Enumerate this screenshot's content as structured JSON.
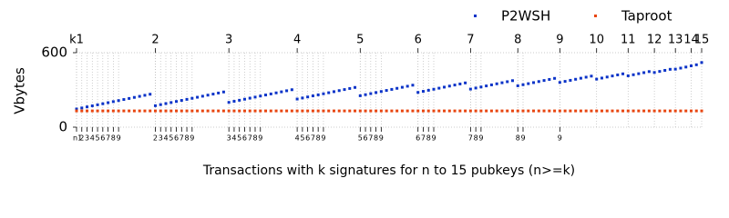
{
  "chart_data": {
    "type": "scatter",
    "xlabel": "Transactions with k signatures for n to 15 pubkeys (n>=k)",
    "ylabel": "Vbytes",
    "xlim": [
      0,
      119
    ],
    "ylim": [
      0,
      600
    ],
    "yticks": [
      0,
      600
    ],
    "x2ticks": [
      {
        "value": 0,
        "label": "k1"
      },
      {
        "value": 15,
        "label": "2"
      },
      {
        "value": 29,
        "label": "3"
      },
      {
        "value": 42,
        "label": "4"
      },
      {
        "value": 54,
        "label": "5"
      },
      {
        "value": 65,
        "label": "6"
      },
      {
        "value": 75,
        "label": "7"
      },
      {
        "value": 84,
        "label": "8"
      },
      {
        "value": 92,
        "label": "9"
      },
      {
        "value": 99,
        "label": "10"
      },
      {
        "value": 105,
        "label": "11"
      },
      {
        "value": 110,
        "label": "12"
      },
      {
        "value": 114,
        "label": "13"
      },
      {
        "value": 117,
        "label": "14"
      },
      {
        "value": 119,
        "label": "15"
      }
    ],
    "xticks": [
      {
        "value": 0,
        "label": "n1"
      },
      {
        "value": 1,
        "label": "2"
      },
      {
        "value": 2,
        "label": "3"
      },
      {
        "value": 3,
        "label": "4"
      },
      {
        "value": 4,
        "label": "5"
      },
      {
        "value": 5,
        "label": "6"
      },
      {
        "value": 6,
        "label": "7"
      },
      {
        "value": 7,
        "label": "8"
      },
      {
        "value": 8,
        "label": "9"
      },
      {
        "value": 15,
        "label": "2"
      },
      {
        "value": 16,
        "label": "3"
      },
      {
        "value": 17,
        "label": "4"
      },
      {
        "value": 18,
        "label": "5"
      },
      {
        "value": 19,
        "label": "6"
      },
      {
        "value": 20,
        "label": "7"
      },
      {
        "value": 21,
        "label": "8"
      },
      {
        "value": 22,
        "label": "9"
      },
      {
        "value": 29,
        "label": "3"
      },
      {
        "value": 30,
        "label": "4"
      },
      {
        "value": 31,
        "label": "5"
      },
      {
        "value": 32,
        "label": "6"
      },
      {
        "value": 33,
        "label": "7"
      },
      {
        "value": 34,
        "label": "8"
      },
      {
        "value": 35,
        "label": "9"
      },
      {
        "value": 42,
        "label": "4"
      },
      {
        "value": 43,
        "label": "5"
      },
      {
        "value": 44,
        "label": "6"
      },
      {
        "value": 45,
        "label": "7"
      },
      {
        "value": 46,
        "label": "8"
      },
      {
        "value": 47,
        "label": "9"
      },
      {
        "value": 54,
        "label": "5"
      },
      {
        "value": 55,
        "label": "6"
      },
      {
        "value": 56,
        "label": "7"
      },
      {
        "value": 57,
        "label": "8"
      },
      {
        "value": 58,
        "label": "9"
      },
      {
        "value": 65,
        "label": "6"
      },
      {
        "value": 66,
        "label": "7"
      },
      {
        "value": 67,
        "label": "8"
      },
      {
        "value": 68,
        "label": "9"
      },
      {
        "value": 75,
        "label": "7"
      },
      {
        "value": 76,
        "label": "8"
      },
      {
        "value": 77,
        "label": "9"
      },
      {
        "value": 84,
        "label": "8"
      },
      {
        "value": 85,
        "label": "9"
      },
      {
        "value": 92,
        "label": "9"
      }
    ],
    "grid": true,
    "legend": "upper right",
    "series": [
      {
        "name": "P2WSH",
        "color": "#0a33c8",
        "values": [
          146.25,
          154.75,
          163.25,
          171.75,
          180.25,
          188.75,
          197.25,
          205.75,
          214.25,
          222.75,
          231.25,
          239.75,
          248.25,
          256.75,
          265.25,
          173,
          181.5,
          190,
          198.5,
          207,
          215.5,
          224,
          232.5,
          241,
          249.5,
          258,
          266.5,
          275,
          283.5,
          199.75,
          208.25,
          216.75,
          225.25,
          233.75,
          242.25,
          250.75,
          259.25,
          267.75,
          276.25,
          284.75,
          293.25,
          301.75,
          226.5,
          235,
          243.5,
          252,
          260.5,
          269,
          277.5,
          286,
          294.5,
          303,
          311.5,
          320,
          253.25,
          261.75,
          270.25,
          278.75,
          287.25,
          295.75,
          304.25,
          312.75,
          321.25,
          329.75,
          338.25,
          280,
          288.5,
          297,
          305.5,
          314,
          322.5,
          331,
          339.5,
          348,
          356.5,
          306.75,
          315.25,
          323.75,
          332.25,
          340.75,
          349.25,
          357.75,
          366.25,
          374.75,
          333.5,
          342,
          350.5,
          359,
          367.5,
          376,
          384.5,
          393,
          360.25,
          368.75,
          377.25,
          385.75,
          394.25,
          402.75,
          411.25,
          387,
          395.5,
          404,
          412.5,
          421,
          429.5,
          413.75,
          422.25,
          430.75,
          439.25,
          447.75,
          440.5,
          449,
          457.5,
          466,
          467.25,
          475.75,
          484.25,
          494,
          502.5,
          520.75
        ]
      },
      {
        "name": "Taproot",
        "color": "#e8450f",
        "values": [
          131,
          131,
          131,
          131,
          131,
          131,
          131,
          131,
          131,
          131,
          131,
          131,
          131,
          131,
          131,
          131,
          131,
          131,
          131,
          131,
          131,
          131,
          131,
          131,
          131,
          131,
          131,
          131,
          131,
          131,
          131,
          131,
          131,
          131,
          131,
          131,
          131,
          131,
          131,
          131,
          131,
          131,
          131,
          131,
          131,
          131,
          131,
          131,
          131,
          131,
          131,
          131,
          131,
          131,
          131,
          131,
          131,
          131,
          131,
          131,
          131,
          131,
          131,
          131,
          131,
          131,
          131,
          131,
          131,
          131,
          131,
          131,
          131,
          131,
          131,
          131,
          131,
          131,
          131,
          131,
          131,
          131,
          131,
          131,
          131,
          131,
          131,
          131,
          131,
          131,
          131,
          131,
          131,
          131,
          131,
          131,
          131,
          131,
          131,
          131,
          131,
          131,
          131,
          131,
          131,
          131,
          131,
          131,
          131,
          131,
          131,
          131,
          131,
          131,
          131,
          131,
          131,
          131,
          131,
          131
        ]
      }
    ]
  }
}
